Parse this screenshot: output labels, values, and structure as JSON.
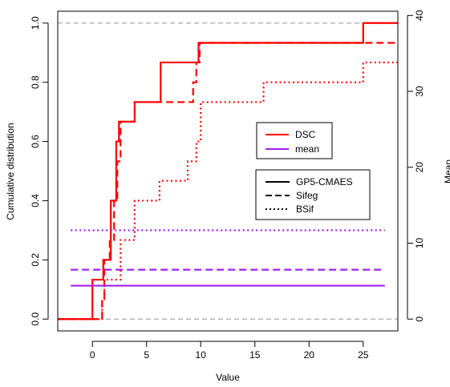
{
  "chart_data": {
    "type": "line",
    "subtype": "step-ecdf",
    "title": "",
    "xlabel": "Value",
    "ylabel_left": "Cumulative distribution",
    "ylabel_right": "Mean",
    "xlim": [
      -3.2,
      28.2
    ],
    "ylim_left": [
      -0.04,
      1.04
    ],
    "ylim_right": [
      -1.56,
      40.56
    ],
    "xticks": [
      "0",
      "5",
      "10",
      "15",
      "20",
      "25"
    ],
    "yticks_left": [
      "0.0",
      "0.2",
      "0.4",
      "0.6",
      "0.8",
      "1.0"
    ],
    "yticks_right": [
      "0",
      "10",
      "20",
      "30",
      "40"
    ],
    "reference_lines_y": [
      0,
      1
    ],
    "grid": false,
    "legend_color": {
      "placement": "center-right",
      "entries": [
        {
          "label": "DSC",
          "color": "#ff0000"
        },
        {
          "label": "mean",
          "color": "#a020f0"
        }
      ]
    },
    "legend_linetype": {
      "placement": "center-right",
      "entries": [
        {
          "label": "GP5-CMAES",
          "dash": "solid"
        },
        {
          "label": "Sifeg",
          "dash": "dashed"
        },
        {
          "label": "BSif",
          "dash": "dotted"
        }
      ]
    },
    "series": [
      {
        "group": "DSC",
        "method": "GP5-CMAES",
        "color": "#ff0000",
        "dash": "solid",
        "x": [
          -3.2,
          0.0,
          1.0,
          1.7,
          2.2,
          2.45,
          3.9,
          6.3,
          9.8,
          25.0,
          28.2
        ],
        "y": [
          0.0,
          0.133,
          0.2,
          0.4,
          0.6,
          0.667,
          0.733,
          0.867,
          0.933,
          1.0,
          1.0
        ]
      },
      {
        "group": "DSC",
        "method": "Sifeg",
        "color": "#ff0000",
        "dash": "dashed",
        "x": [
          -3.2,
          0.9,
          1.1,
          1.6,
          2.0,
          2.3,
          2.6,
          3.9,
          6.3,
          9.3,
          9.6,
          9.9,
          25.0,
          28.2
        ],
        "y": [
          0.0,
          0.067,
          0.2,
          0.267,
          0.4,
          0.533,
          0.667,
          0.733,
          0.733,
          0.8,
          0.867,
          0.933,
          0.933,
          0.933
        ]
      },
      {
        "group": "DSC",
        "method": "BSif",
        "color": "#ff0000",
        "dash": "dotted",
        "x": [
          -3.2,
          0.9,
          1.1,
          2.6,
          3.9,
          6.2,
          8.8,
          9.6,
          10.0,
          15.8,
          25.0,
          28.2
        ],
        "y": [
          0.0,
          0.067,
          0.133,
          0.267,
          0.4,
          0.467,
          0.533,
          0.6,
          0.733,
          0.8,
          0.867,
          0.867
        ]
      },
      {
        "group": "mean",
        "method": "GP5-CMAES",
        "color": "#a020f0",
        "dash": "solid",
        "axis": "right",
        "x": [
          -2.0,
          27.0
        ],
        "y": [
          4.4,
          4.4
        ]
      },
      {
        "group": "mean",
        "method": "Sifeg",
        "color": "#a020f0",
        "dash": "dashed",
        "axis": "right",
        "x": [
          -2.0,
          27.0
        ],
        "y": [
          6.5,
          6.5
        ]
      },
      {
        "group": "mean",
        "method": "BSif",
        "color": "#a020f0",
        "dash": "dotted",
        "axis": "right",
        "x": [
          -2.0,
          27.0
        ],
        "y": [
          11.7,
          11.7
        ]
      }
    ]
  }
}
